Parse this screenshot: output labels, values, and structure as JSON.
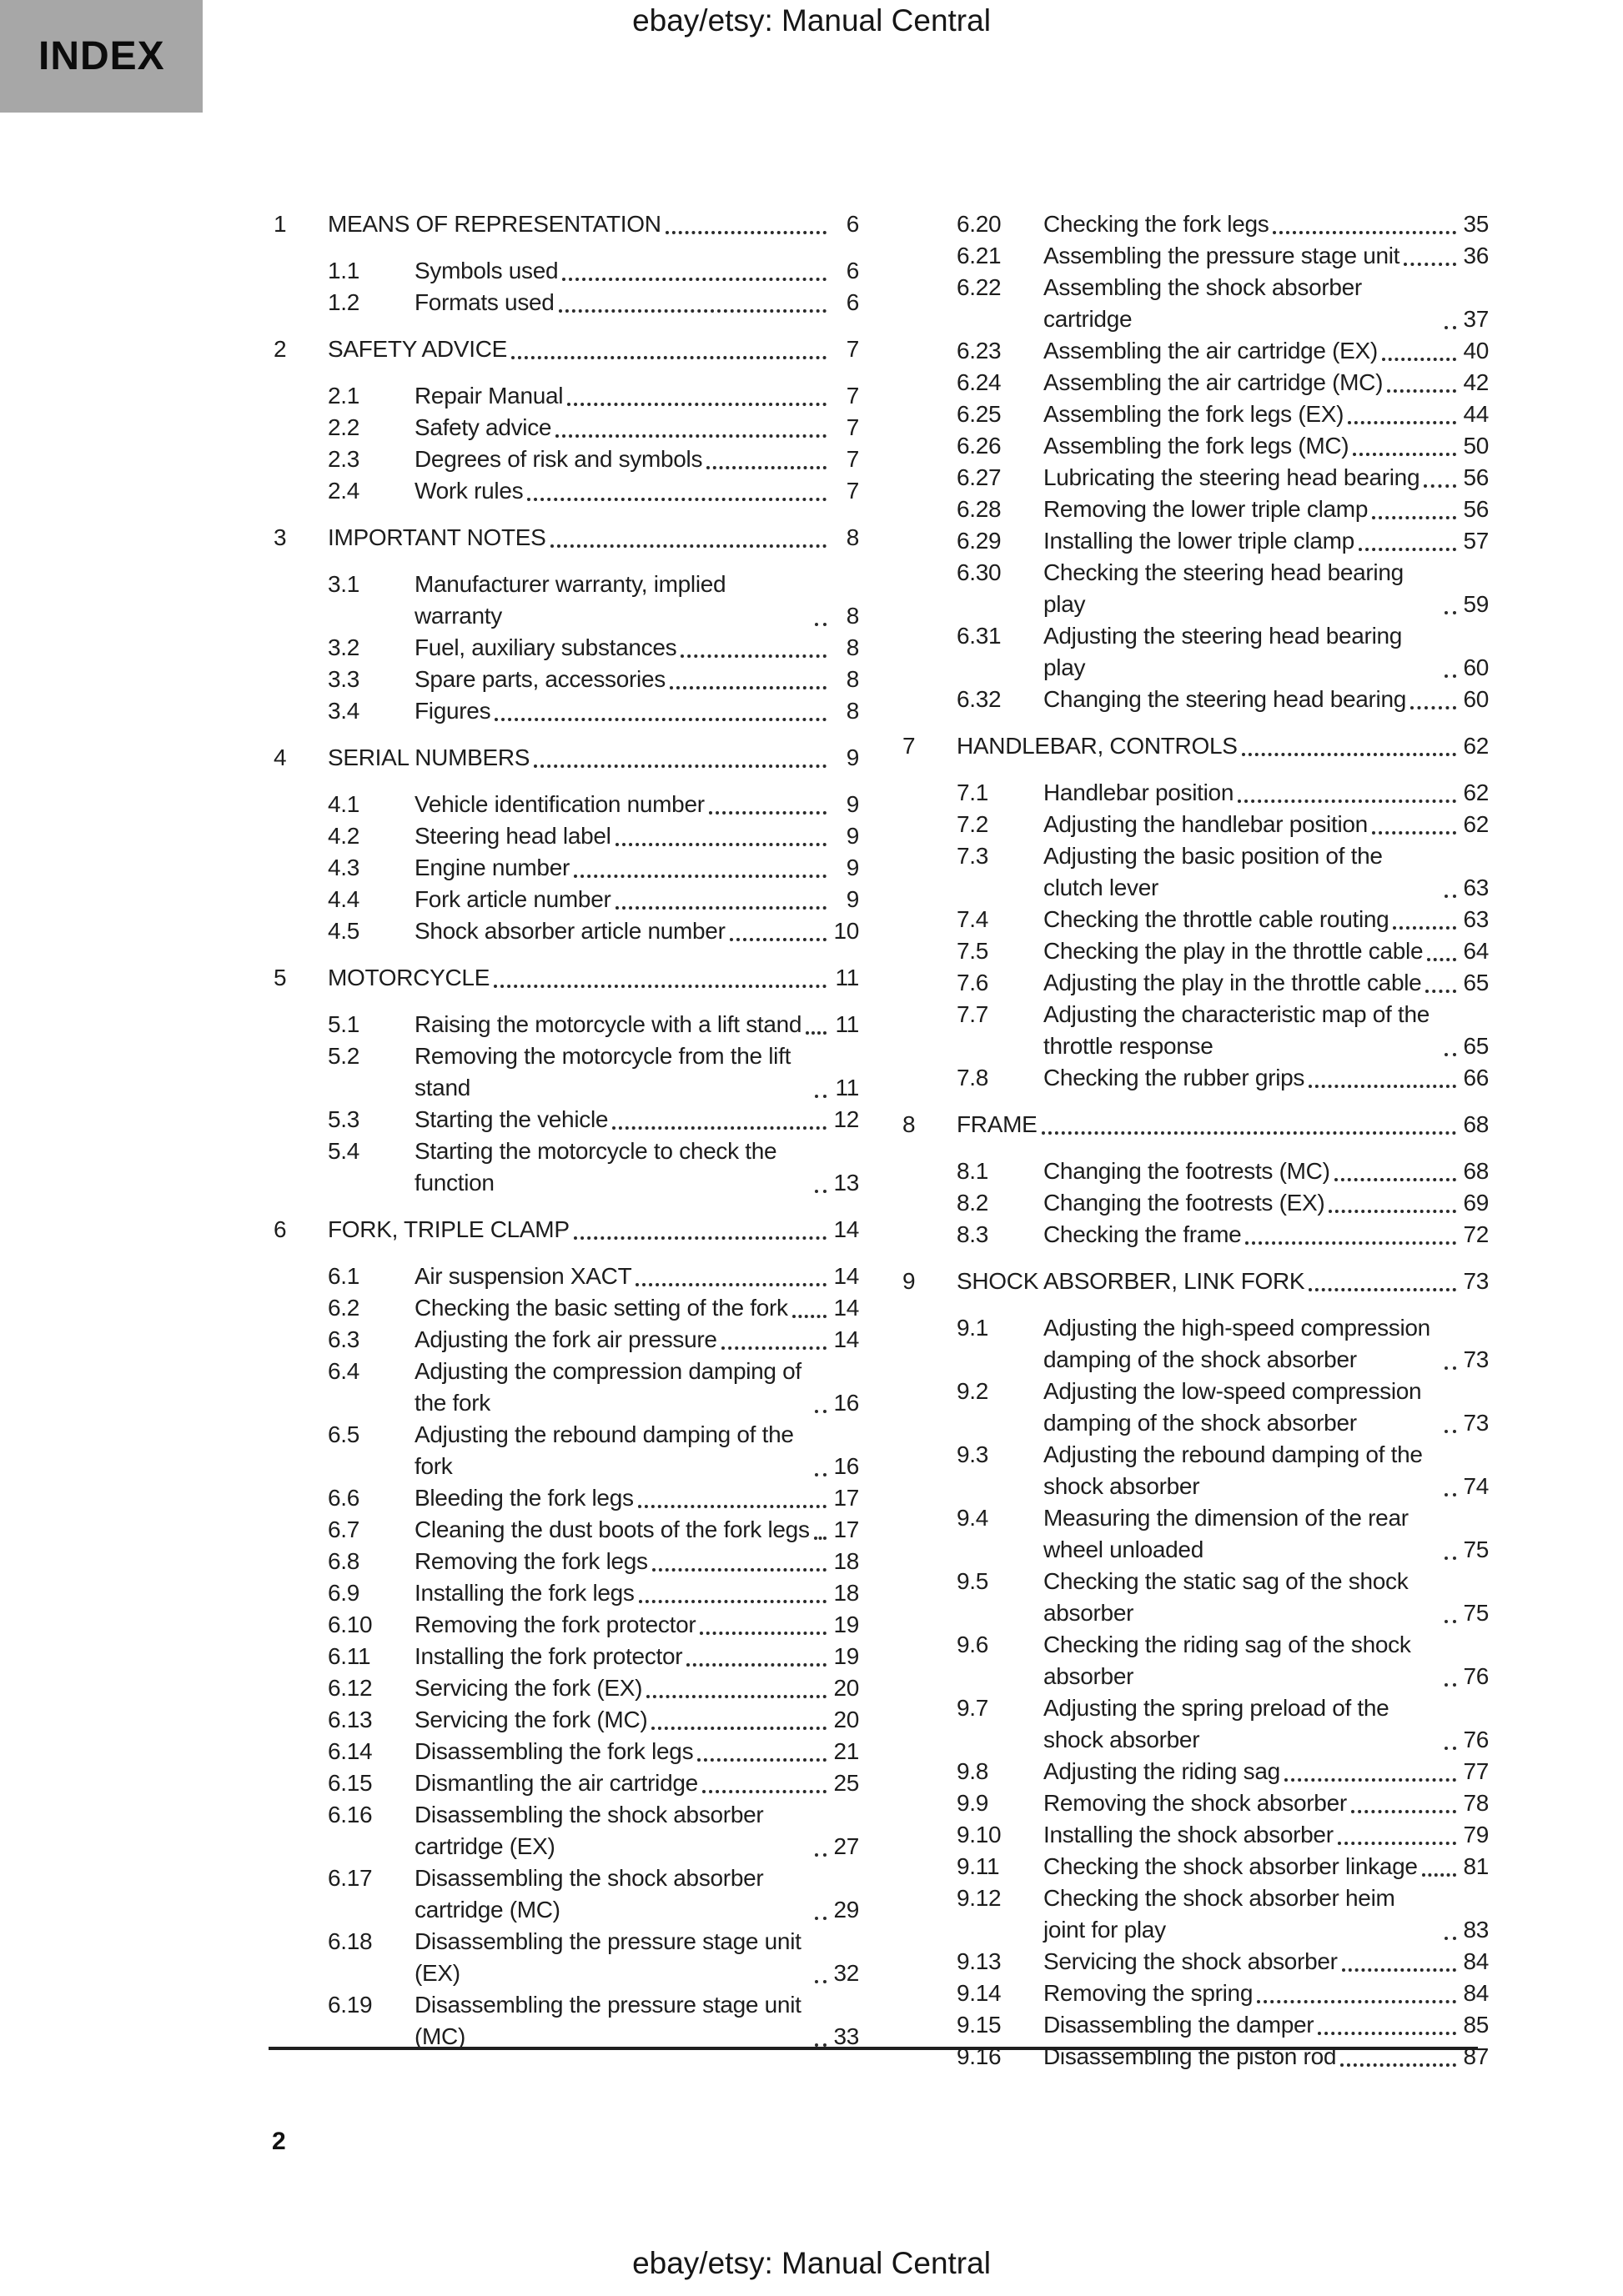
{
  "header": {
    "title": "ebay/etsy: Manual Central"
  },
  "index_label": "INDEX",
  "footer": {
    "page_number": "2",
    "title": "ebay/etsy: Manual Central"
  },
  "toc": {
    "left_column": [
      {
        "level": 1,
        "num": "1",
        "title": "MEANS OF REPRESENTATION",
        "page": "6"
      },
      {
        "level": 2,
        "num": "1.1",
        "title": "Symbols used",
        "page": "6"
      },
      {
        "level": 2,
        "num": "1.2",
        "title": "Formats used",
        "page": "6"
      },
      {
        "level": 1,
        "num": "2",
        "title": "SAFETY ADVICE",
        "page": "7"
      },
      {
        "level": 2,
        "num": "2.1",
        "title": "Repair Manual",
        "page": "7"
      },
      {
        "level": 2,
        "num": "2.2",
        "title": "Safety advice",
        "page": "7"
      },
      {
        "level": 2,
        "num": "2.3",
        "title": "Degrees of risk and symbols",
        "page": "7"
      },
      {
        "level": 2,
        "num": "2.4",
        "title": "Work rules",
        "page": "7"
      },
      {
        "level": 1,
        "num": "3",
        "title": "IMPORTANT NOTES",
        "page": "8"
      },
      {
        "level": 2,
        "num": "3.1",
        "title": "Manufacturer warranty, implied warranty",
        "page": "8"
      },
      {
        "level": 2,
        "num": "3.2",
        "title": "Fuel, auxiliary substances",
        "page": "8"
      },
      {
        "level": 2,
        "num": "3.3",
        "title": "Spare parts, accessories",
        "page": "8"
      },
      {
        "level": 2,
        "num": "3.4",
        "title": "Figures",
        "page": "8"
      },
      {
        "level": 1,
        "num": "4",
        "title": "SERIAL NUMBERS",
        "page": "9"
      },
      {
        "level": 2,
        "num": "4.1",
        "title": "Vehicle identification number",
        "page": "9"
      },
      {
        "level": 2,
        "num": "4.2",
        "title": "Steering head label",
        "page": "9"
      },
      {
        "level": 2,
        "num": "4.3",
        "title": "Engine number",
        "page": "9"
      },
      {
        "level": 2,
        "num": "4.4",
        "title": "Fork article number",
        "page": "9"
      },
      {
        "level": 2,
        "num": "4.5",
        "title": "Shock absorber article number",
        "page": "10"
      },
      {
        "level": 1,
        "num": "5",
        "title": "MOTORCYCLE",
        "page": "11"
      },
      {
        "level": 2,
        "num": "5.1",
        "title": "Raising the motorcycle with a lift stand",
        "page": "11"
      },
      {
        "level": 2,
        "num": "5.2",
        "title": "Removing the motorcycle from the lift stand",
        "page": "11"
      },
      {
        "level": 2,
        "num": "5.3",
        "title": "Starting the vehicle",
        "page": "12"
      },
      {
        "level": 2,
        "num": "5.4",
        "title": "Starting the motorcycle to check the function",
        "page": "13"
      },
      {
        "level": 1,
        "num": "6",
        "title": "FORK, TRIPLE CLAMP",
        "page": "14"
      },
      {
        "level": 2,
        "num": "6.1",
        "title": "Air suspension XACT",
        "page": "14"
      },
      {
        "level": 2,
        "num": "6.2",
        "title": "Checking the basic setting of the fork",
        "page": "14"
      },
      {
        "level": 2,
        "num": "6.3",
        "title": "Adjusting the fork air pressure",
        "page": "14"
      },
      {
        "level": 2,
        "num": "6.4",
        "title": "Adjusting the compression damping of the fork",
        "page": "16"
      },
      {
        "level": 2,
        "num": "6.5",
        "title": "Adjusting the rebound damping of the fork",
        "page": "16"
      },
      {
        "level": 2,
        "num": "6.6",
        "title": "Bleeding the fork legs",
        "page": "17"
      },
      {
        "level": 2,
        "num": "6.7",
        "title": "Cleaning the dust boots of the fork legs",
        "page": "17"
      },
      {
        "level": 2,
        "num": "6.8",
        "title": "Removing the fork legs",
        "page": "18"
      },
      {
        "level": 2,
        "num": "6.9",
        "title": "Installing the fork legs",
        "page": "18"
      },
      {
        "level": 2,
        "num": "6.10",
        "title": "Removing the fork protector",
        "page": "19"
      },
      {
        "level": 2,
        "num": "6.11",
        "title": "Installing the fork protector",
        "page": "19"
      },
      {
        "level": 2,
        "num": "6.12",
        "title": "Servicing the fork (EX)",
        "page": "20"
      },
      {
        "level": 2,
        "num": "6.13",
        "title": "Servicing the fork (MC)",
        "page": "20"
      },
      {
        "level": 2,
        "num": "6.14",
        "title": "Disassembling the fork legs",
        "page": "21"
      },
      {
        "level": 2,
        "num": "6.15",
        "title": "Dismantling the air cartridge",
        "page": "25"
      },
      {
        "level": 2,
        "num": "6.16",
        "title": "Disassembling the shock absorber cartridge (EX)",
        "page": "27"
      },
      {
        "level": 2,
        "num": "6.17",
        "title": "Disassembling the shock absorber cartridge (MC)",
        "page": "29"
      },
      {
        "level": 2,
        "num": "6.18",
        "title": "Disassembling the pressure stage unit (EX)",
        "page": "32"
      },
      {
        "level": 2,
        "num": "6.19",
        "title": "Disassembling the pressure stage unit (MC)",
        "page": "33"
      }
    ],
    "right_column": [
      {
        "level": 2,
        "num": "6.20",
        "title": "Checking the fork legs",
        "page": "35"
      },
      {
        "level": 2,
        "num": "6.21",
        "title": "Assembling the pressure stage unit",
        "page": "36"
      },
      {
        "level": 2,
        "num": "6.22",
        "title": "Assembling the shock absorber cartridge",
        "page": "37"
      },
      {
        "level": 2,
        "num": "6.23",
        "title": "Assembling the air cartridge (EX)",
        "page": "40"
      },
      {
        "level": 2,
        "num": "6.24",
        "title": "Assembling the air cartridge (MC)",
        "page": "42"
      },
      {
        "level": 2,
        "num": "6.25",
        "title": "Assembling the fork legs (EX)",
        "page": "44"
      },
      {
        "level": 2,
        "num": "6.26",
        "title": "Assembling the fork legs (MC)",
        "page": "50"
      },
      {
        "level": 2,
        "num": "6.27",
        "title": "Lubricating the steering head bearing",
        "page": "56"
      },
      {
        "level": 2,
        "num": "6.28",
        "title": "Removing the lower triple clamp",
        "page": "56"
      },
      {
        "level": 2,
        "num": "6.29",
        "title": "Installing the lower triple clamp",
        "page": "57"
      },
      {
        "level": 2,
        "num": "6.30",
        "title": "Checking the steering head bearing play",
        "page": "59"
      },
      {
        "level": 2,
        "num": "6.31",
        "title": "Adjusting the steering head bearing play",
        "page": "60"
      },
      {
        "level": 2,
        "num": "6.32",
        "title": "Changing the steering head bearing",
        "page": "60"
      },
      {
        "level": 1,
        "num": "7",
        "title": "HANDLEBAR, CONTROLS",
        "page": "62"
      },
      {
        "level": 2,
        "num": "7.1",
        "title": "Handlebar position",
        "page": "62"
      },
      {
        "level": 2,
        "num": "7.2",
        "title": "Adjusting the handlebar position",
        "page": "62"
      },
      {
        "level": 2,
        "num": "7.3",
        "title": "Adjusting the basic position of the clutch lever",
        "page": "63"
      },
      {
        "level": 2,
        "num": "7.4",
        "title": "Checking the throttle cable routing",
        "page": "63"
      },
      {
        "level": 2,
        "num": "7.5",
        "title": "Checking the play in the throttle cable",
        "page": "64"
      },
      {
        "level": 2,
        "num": "7.6",
        "title": "Adjusting the play in the throttle cable",
        "page": "65"
      },
      {
        "level": 2,
        "num": "7.7",
        "title": "Adjusting the characteristic map of the throttle response",
        "page": "65"
      },
      {
        "level": 2,
        "num": "7.8",
        "title": "Checking the rubber grips",
        "page": "66"
      },
      {
        "level": 1,
        "num": "8",
        "title": "FRAME",
        "page": "68"
      },
      {
        "level": 2,
        "num": "8.1",
        "title": "Changing the footrests (MC)",
        "page": "68"
      },
      {
        "level": 2,
        "num": "8.2",
        "title": "Changing the footrests (EX)",
        "page": "69"
      },
      {
        "level": 2,
        "num": "8.3",
        "title": "Checking the frame",
        "page": "72"
      },
      {
        "level": 1,
        "num": "9",
        "title": "SHOCK ABSORBER, LINK FORK",
        "page": "73"
      },
      {
        "level": 2,
        "num": "9.1",
        "title": "Adjusting the high-speed compression damping of the shock absorber",
        "page": "73"
      },
      {
        "level": 2,
        "num": "9.2",
        "title": "Adjusting the low-speed compression damping of the shock absorber",
        "page": "73"
      },
      {
        "level": 2,
        "num": "9.3",
        "title": "Adjusting the rebound damping of the shock absorber",
        "page": "74"
      },
      {
        "level": 2,
        "num": "9.4",
        "title": "Measuring the dimension of the rear wheel unloaded",
        "page": "75"
      },
      {
        "level": 2,
        "num": "9.5",
        "title": "Checking the static sag of the shock absorber",
        "page": "75"
      },
      {
        "level": 2,
        "num": "9.6",
        "title": "Checking the riding sag of the shock absorber",
        "page": "76"
      },
      {
        "level": 2,
        "num": "9.7",
        "title": "Adjusting the spring preload of the shock absorber",
        "page": "76"
      },
      {
        "level": 2,
        "num": "9.8",
        "title": "Adjusting the riding sag",
        "page": "77"
      },
      {
        "level": 2,
        "num": "9.9",
        "title": "Removing the shock absorber",
        "page": "78"
      },
      {
        "level": 2,
        "num": "9.10",
        "title": "Installing the shock absorber",
        "page": "79"
      },
      {
        "level": 2,
        "num": "9.11",
        "title": "Checking the shock absorber linkage",
        "page": "81"
      },
      {
        "level": 2,
        "num": "9.12",
        "title": "Checking the shock absorber heim joint for play",
        "page": "83"
      },
      {
        "level": 2,
        "num": "9.13",
        "title": "Servicing the shock absorber",
        "page": "84"
      },
      {
        "level": 2,
        "num": "9.14",
        "title": "Removing the spring",
        "page": "84"
      },
      {
        "level": 2,
        "num": "9.15",
        "title": "Disassembling the damper",
        "page": "85"
      },
      {
        "level": 2,
        "num": "9.16",
        "title": "Disassembling the piston rod",
        "page": "87"
      }
    ]
  },
  "colors": {
    "index_tab_bg": "#a7a7a7",
    "text": "#1d1d1d",
    "rule": "#1f1f1f"
  }
}
